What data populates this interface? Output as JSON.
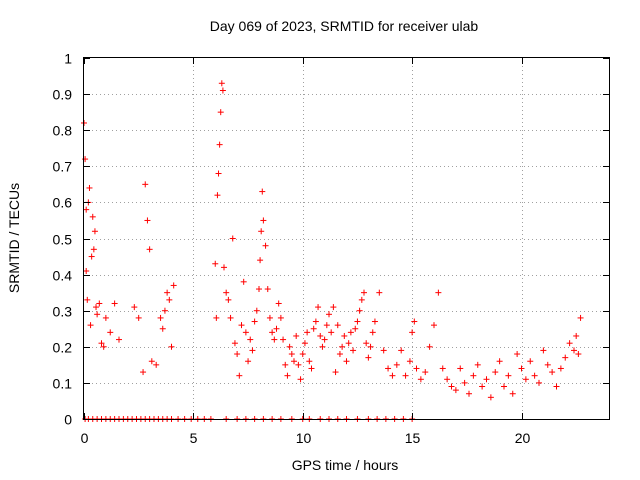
{
  "chart_data": {
    "type": "scatter",
    "title": "Day 069 of 2023, SRMTID for receiver ulab",
    "xlabel": "GPS time / hours",
    "ylabel": "SRMTID / TECUs",
    "xlim": [
      0,
      24
    ],
    "ylim": [
      0,
      1
    ],
    "xticks": [
      0,
      5,
      10,
      15,
      20
    ],
    "xtick_labels": [
      "0",
      "5",
      "10",
      "15",
      "20"
    ],
    "yticks": [
      0,
      0.1,
      0.2,
      0.3,
      0.4,
      0.5,
      0.6,
      0.7,
      0.8,
      0.9,
      1
    ],
    "ytick_labels": [
      "0",
      "0.1",
      "0.2",
      "0.3",
      "0.4",
      "0.5",
      "0.6",
      "0.7",
      "0.8",
      "0.9",
      "1"
    ],
    "grid": true,
    "marker": "+",
    "color": "#ff0000",
    "series": [
      {
        "name": "SRMTID",
        "x": [
          0.0,
          0.05,
          0.1,
          0.1,
          0.15,
          0.2,
          0.25,
          0.3,
          0.35,
          0.4,
          0.45,
          0.5,
          0.55,
          0.6,
          0.7,
          0.8,
          0.9,
          1.0,
          1.2,
          1.4,
          1.6,
          2.3,
          2.5,
          2.7,
          2.8,
          2.9,
          3.0,
          3.1,
          3.3,
          3.5,
          3.6,
          3.7,
          3.8,
          3.9,
          4.0,
          4.1,
          6.0,
          6.05,
          6.1,
          6.15,
          6.2,
          6.25,
          6.3,
          6.35,
          6.4,
          6.5,
          6.6,
          6.7,
          6.8,
          6.9,
          7.0,
          7.1,
          7.2,
          7.3,
          7.4,
          7.5,
          7.6,
          7.7,
          7.8,
          7.9,
          8.0,
          8.05,
          8.1,
          8.15,
          8.2,
          8.3,
          8.4,
          8.5,
          8.6,
          8.7,
          8.8,
          8.9,
          9.0,
          9.1,
          9.2,
          9.3,
          9.4,
          9.5,
          9.6,
          9.7,
          9.8,
          9.9,
          10.0,
          10.1,
          10.2,
          10.3,
          10.4,
          10.5,
          10.6,
          10.7,
          10.8,
          10.9,
          11.0,
          11.1,
          11.2,
          11.3,
          11.4,
          11.5,
          11.6,
          11.7,
          11.8,
          11.9,
          12.0,
          12.1,
          12.2,
          12.3,
          12.4,
          12.5,
          12.6,
          12.7,
          12.8,
          12.9,
          13.0,
          13.1,
          13.2,
          13.3,
          13.5,
          13.7,
          13.9,
          14.1,
          14.3,
          14.5,
          14.7,
          14.9,
          15.0,
          15.1,
          15.2,
          15.4,
          15.6,
          15.8,
          16.0,
          16.2,
          16.4,
          16.6,
          16.8,
          17.0,
          17.2,
          17.4,
          17.6,
          17.8,
          18.0,
          18.2,
          18.4,
          18.6,
          18.8,
          19.0,
          19.2,
          19.4,
          19.6,
          19.8,
          20.0,
          20.2,
          20.4,
          20.6,
          20.8,
          21.0,
          21.2,
          21.4,
          21.6,
          21.8,
          22.0,
          22.2,
          22.4,
          22.5,
          22.6,
          22.7
        ],
        "y": [
          0.82,
          0.72,
          0.58,
          0.41,
          0.33,
          0.6,
          0.64,
          0.26,
          0.45,
          0.56,
          0.47,
          0.52,
          0.31,
          0.29,
          0.32,
          0.21,
          0.2,
          0.28,
          0.24,
          0.32,
          0.22,
          0.31,
          0.28,
          0.13,
          0.65,
          0.55,
          0.47,
          0.16,
          0.15,
          0.28,
          0.25,
          0.3,
          0.35,
          0.33,
          0.2,
          0.37,
          0.43,
          0.28,
          0.62,
          0.68,
          0.76,
          0.85,
          0.93,
          0.91,
          0.42,
          0.35,
          0.33,
          0.28,
          0.5,
          0.21,
          0.18,
          0.12,
          0.26,
          0.38,
          0.24,
          0.16,
          0.22,
          0.19,
          0.27,
          0.3,
          0.36,
          0.44,
          0.52,
          0.63,
          0.55,
          0.48,
          0.36,
          0.28,
          0.24,
          0.22,
          0.25,
          0.32,
          0.28,
          0.22,
          0.15,
          0.12,
          0.2,
          0.18,
          0.16,
          0.23,
          0.15,
          0.11,
          0.18,
          0.21,
          0.24,
          0.16,
          0.14,
          0.25,
          0.27,
          0.31,
          0.23,
          0.2,
          0.22,
          0.26,
          0.29,
          0.24,
          0.31,
          0.13,
          0.26,
          0.18,
          0.2,
          0.23,
          0.16,
          0.21,
          0.24,
          0.19,
          0.25,
          0.27,
          0.3,
          0.33,
          0.35,
          0.21,
          0.17,
          0.2,
          0.24,
          0.27,
          0.35,
          0.19,
          0.14,
          0.12,
          0.15,
          0.19,
          0.12,
          0.16,
          0.24,
          0.27,
          0.14,
          0.11,
          0.13,
          0.2,
          0.26,
          0.35,
          0.14,
          0.11,
          0.09,
          0.08,
          0.14,
          0.1,
          0.07,
          0.12,
          0.15,
          0.09,
          0.11,
          0.06,
          0.13,
          0.16,
          0.09,
          0.12,
          0.07,
          0.18,
          0.14,
          0.11,
          0.16,
          0.12,
          0.1,
          0.19,
          0.15,
          0.13,
          0.09,
          0.14,
          0.17,
          0.21,
          0.19,
          0.23,
          0.18,
          0.28
        ],
        "zero_x": [
          0.05,
          0.2,
          0.4,
          0.6,
          0.8,
          1.0,
          1.2,
          1.4,
          1.6,
          1.8,
          2.0,
          2.2,
          2.4,
          2.6,
          2.8,
          3.0,
          3.2,
          3.4,
          3.6,
          3.8,
          4.0,
          4.3,
          4.6,
          4.9,
          5.2,
          5.5,
          5.8,
          6.5,
          7.0,
          7.4,
          7.8,
          8.2,
          8.6,
          9.0,
          9.5,
          10.0,
          10.3,
          10.8,
          11.2,
          11.6,
          12.0,
          12.5,
          13.0,
          13.4,
          13.8,
          14.2,
          14.6,
          15.0
        ]
      }
    ]
  }
}
